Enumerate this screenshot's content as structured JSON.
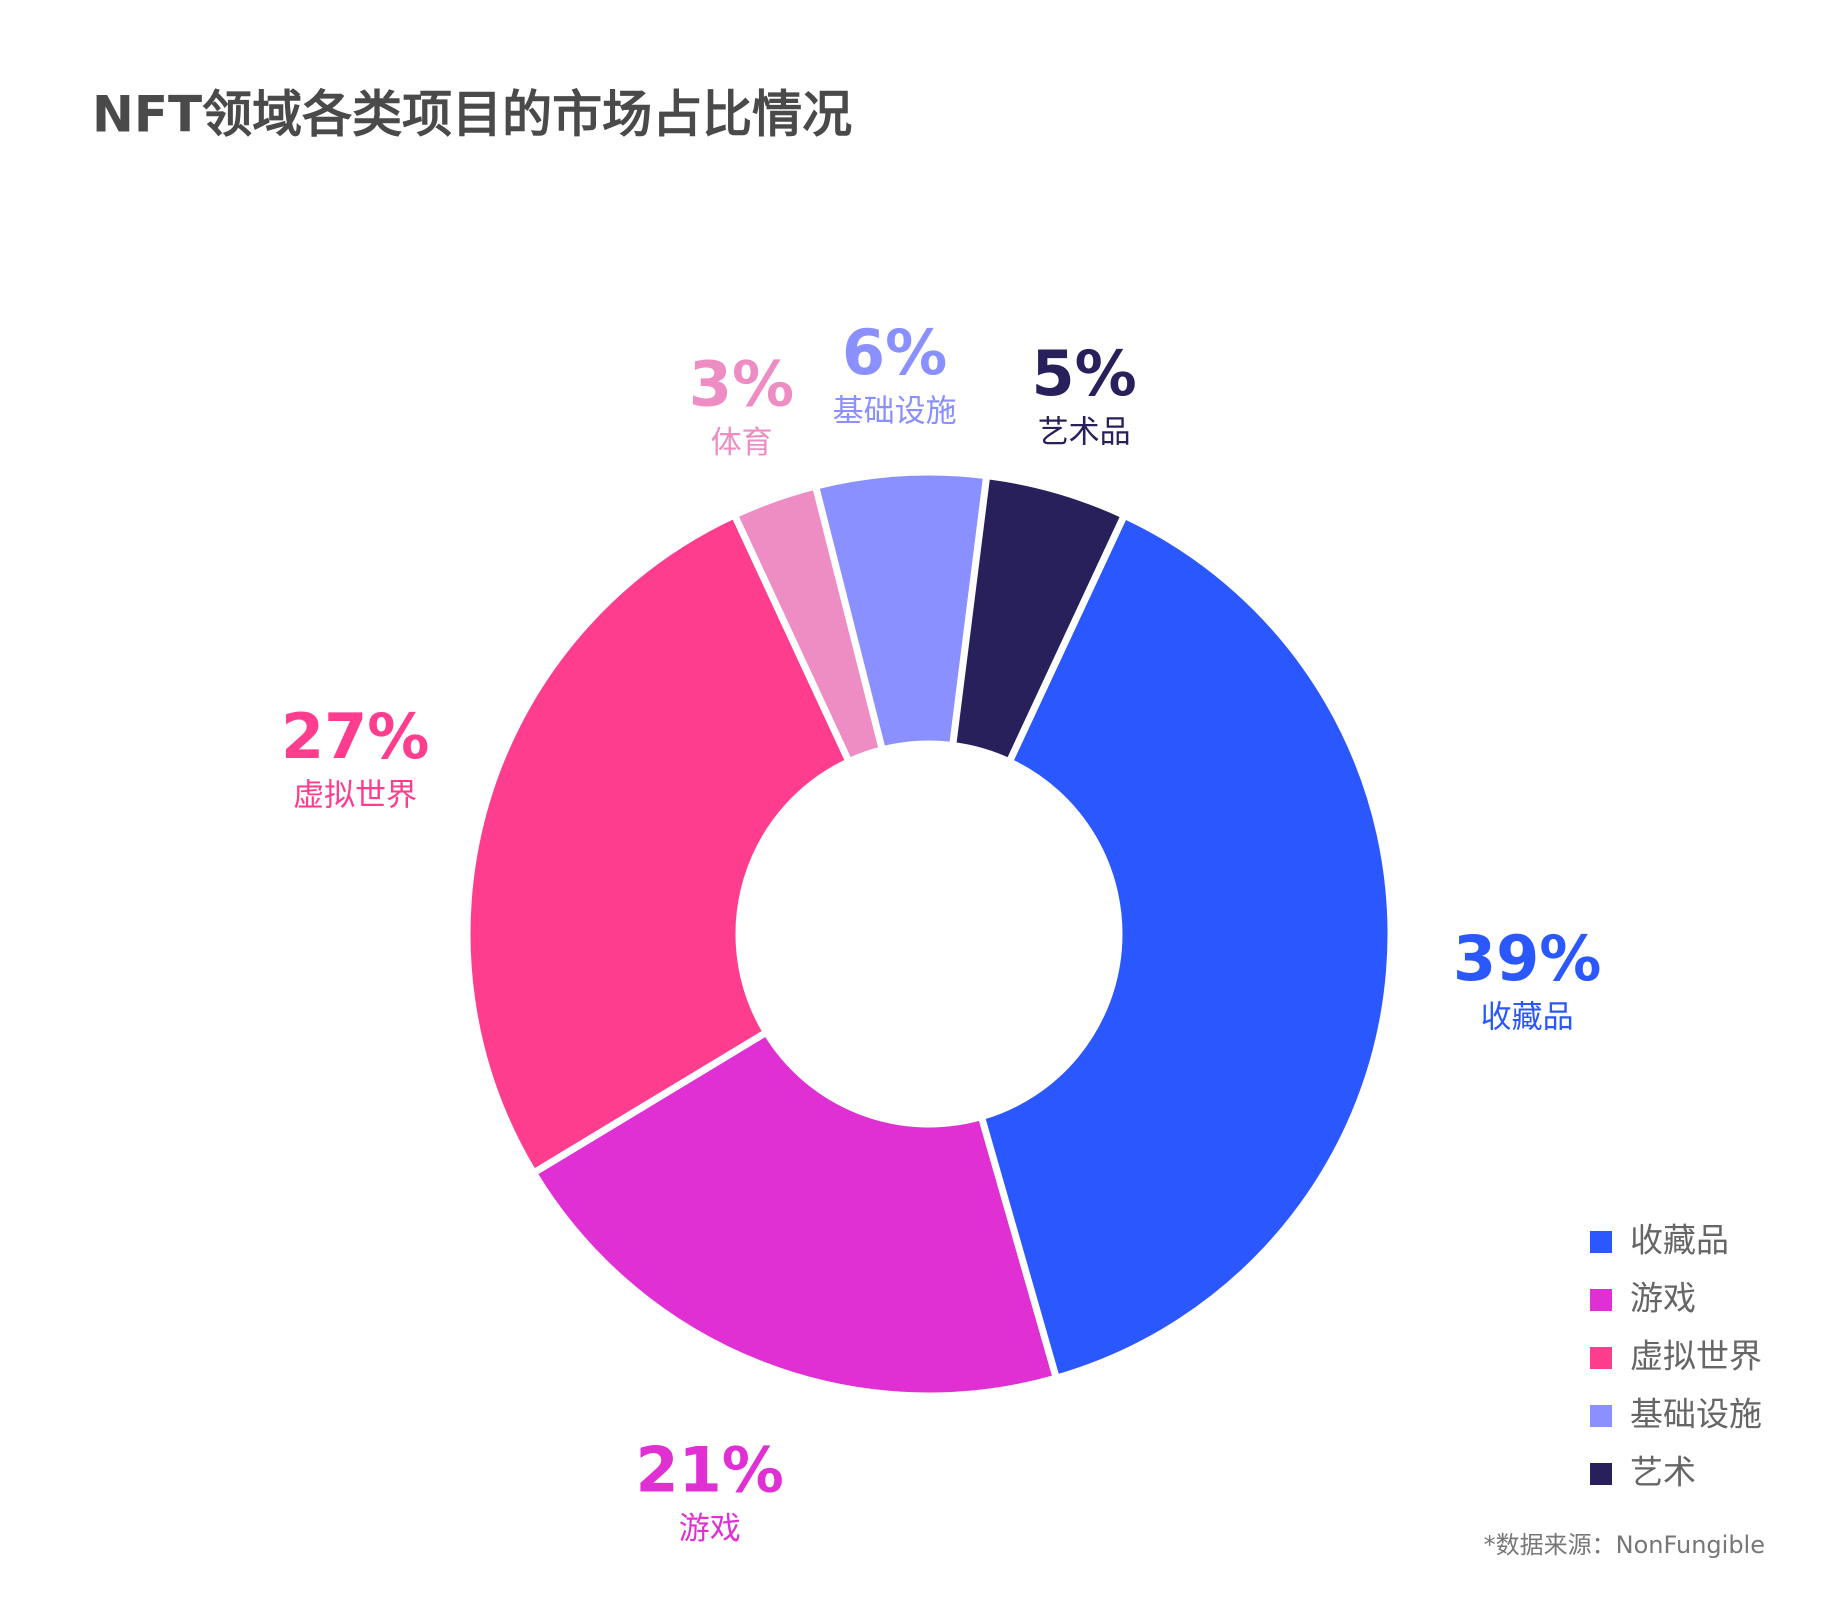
{
  "chart_data": {
    "type": "donut",
    "title": "NFT领域各类项目的市场占比情况",
    "categories": [
      "收藏品",
      "游戏",
      "虚拟世界",
      "体育",
      "基础设施",
      "艺术品"
    ],
    "values": [
      39,
      21,
      27,
      3,
      6,
      5
    ],
    "value_labels": [
      "39%",
      "21%",
      "27%",
      "3%",
      "6%",
      "5%"
    ],
    "colors": [
      "#2b57ff",
      "#e030d4",
      "#ff3d8f",
      "#ee8cc4",
      "#8a90ff",
      "#28205a"
    ],
    "legend": [
      {
        "label": "收藏品",
        "color": "#2b57ff"
      },
      {
        "label": "游戏",
        "color": "#e030d4"
      },
      {
        "label": "虚拟世界",
        "color": "#ff3d8f"
      },
      {
        "label": "基础设施",
        "color": "#8a90ff"
      },
      {
        "label": "艺术",
        "color": "#28205a"
      }
    ],
    "source": "*数据来源：NonFungible"
  }
}
